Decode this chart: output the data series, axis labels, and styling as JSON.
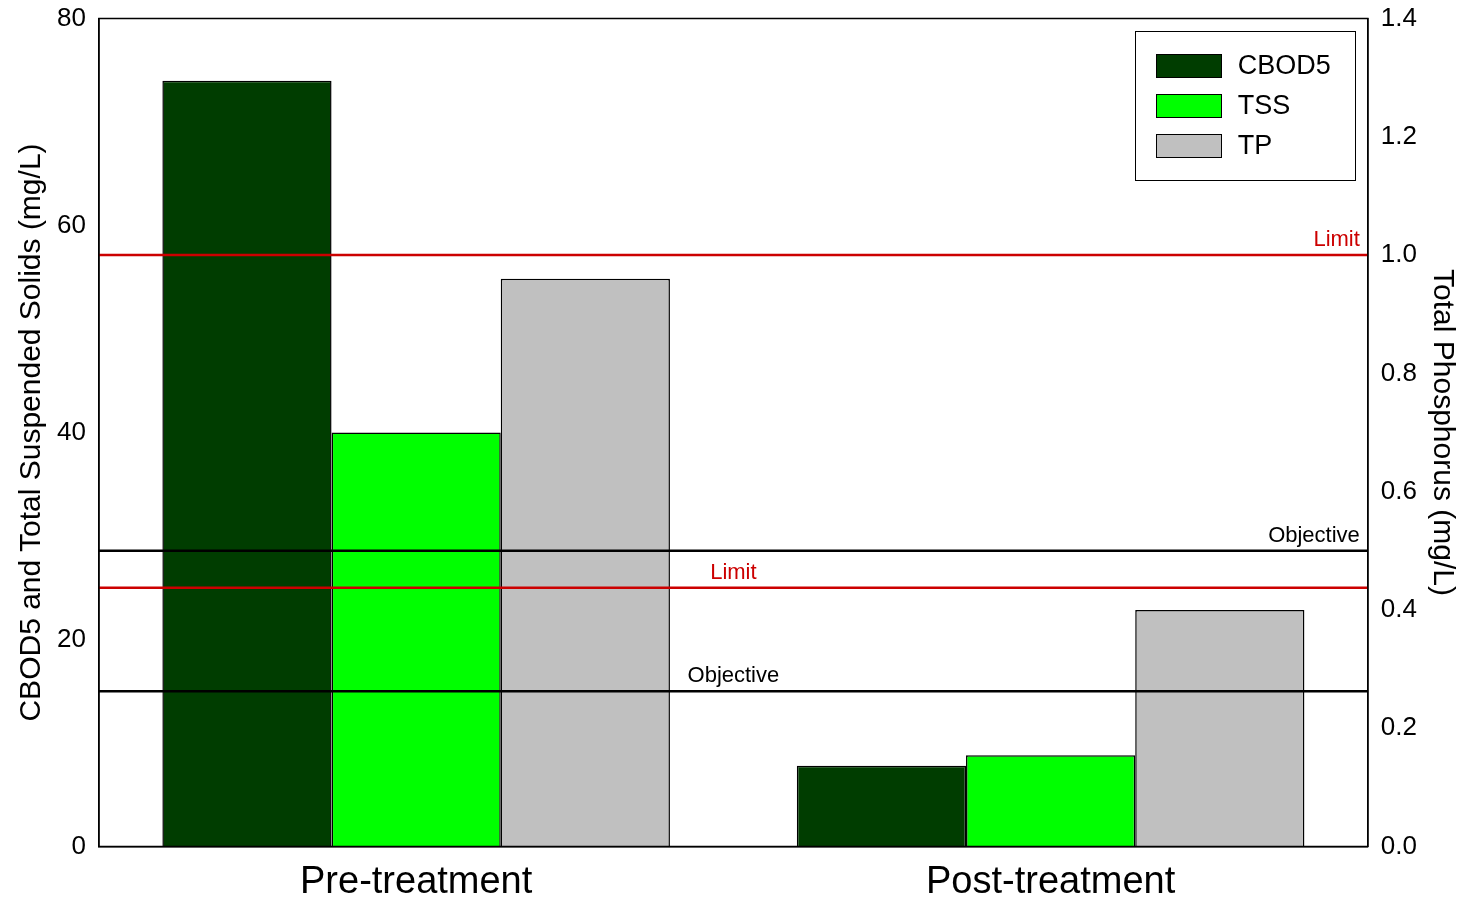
{
  "chart_data": {
    "type": "bar",
    "ylabel": "CBOD5 and Total Suspended Solids (mg/L)",
    "y2label": "Total Phosphorus (mg/L)",
    "categories": [
      "Pre-treatment",
      "Post-treatment"
    ],
    "series": [
      {
        "name": "CBOD5",
        "color": "#003d00",
        "values": [
          74,
          7.8
        ]
      },
      {
        "name": "TSS",
        "color": "#00ff00",
        "values": [
          40,
          8.8
        ]
      },
      {
        "name": "TP",
        "color": "#c0c0c0",
        "values": [
          0.96,
          0.4
        ],
        "axis": "y2"
      }
    ],
    "ylim": [
      0,
      80
    ],
    "yticks": [
      0,
      20,
      40,
      60,
      80
    ],
    "y2lim": [
      0,
      1.4
    ],
    "y2ticks": [
      {
        "value": 0,
        "label": "0.0"
      },
      {
        "value": 0.2,
        "label": "0.2"
      },
      {
        "value": 0.4,
        "label": "0.4"
      },
      {
        "value": 0.6,
        "label": "0.6"
      },
      {
        "value": 0.8,
        "label": "0.8"
      },
      {
        "value": 1,
        "label": "1.0"
      },
      {
        "value": 1.2,
        "label": "1.2"
      },
      {
        "value": 1.4,
        "label": "1.4"
      }
    ],
    "ref_lines": [
      {
        "axis": "y",
        "value": 25,
        "label": "Limit",
        "color": "#cc0000"
      },
      {
        "axis": "y",
        "value": 15,
        "label": "Objective",
        "color": "#000000"
      },
      {
        "axis": "y2",
        "value": 1,
        "label": "Limit",
        "color": "#cc0000"
      },
      {
        "axis": "y2",
        "value": 0.5,
        "label": "Objective",
        "color": "#000000"
      }
    ],
    "legend": "top right",
    "grid": false
  }
}
